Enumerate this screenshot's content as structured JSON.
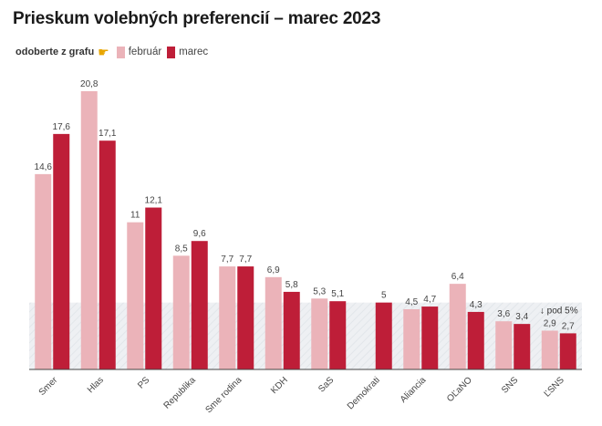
{
  "title": "Prieskum volebných preferencií – marec 2023",
  "legend": {
    "toggle_label": "odoberte z grafu",
    "toggle_icon": "pointing-hand-icon"
  },
  "colors": {
    "februar": "#ebb3b9",
    "marec": "#be1e38",
    "threshold_band": "#eef0f3",
    "axis": "#444444"
  },
  "chart_data": {
    "type": "bar",
    "categories": [
      "Smer",
      "Hlas",
      "PS",
      "Republika",
      "Sme rodina",
      "KDH",
      "SaS",
      "Demokrati",
      "Aliancia",
      "OĽaNO",
      "SNS",
      "ĽSNS"
    ],
    "series": [
      {
        "name": "február",
        "values": [
          14.6,
          20.8,
          11,
          8.5,
          7.7,
          6.9,
          5.3,
          null,
          4.5,
          6.4,
          3.6,
          2.9
        ],
        "labels": [
          "14,6",
          "20,8",
          "11",
          "8,5",
          "7,7",
          "6,9",
          "5,3",
          "",
          "4,5",
          "6,4",
          "3,6",
          "2,9"
        ]
      },
      {
        "name": "marec",
        "values": [
          17.6,
          17.1,
          12.1,
          9.6,
          7.7,
          5.8,
          5.1,
          5,
          4.7,
          4.3,
          3.4,
          2.7
        ],
        "labels": [
          "17,6",
          "17,1",
          "12,1",
          "9,6",
          "7,7",
          "5,8",
          "5,1",
          "5",
          "4,7",
          "4,3",
          "3,4",
          "2,7"
        ]
      }
    ],
    "threshold": {
      "value": 5,
      "label": "↓ pod 5%"
    },
    "ylim": [
      0,
      21
    ],
    "grid": false,
    "legend_position": "top-left",
    "xlabel": "",
    "ylabel": ""
  }
}
